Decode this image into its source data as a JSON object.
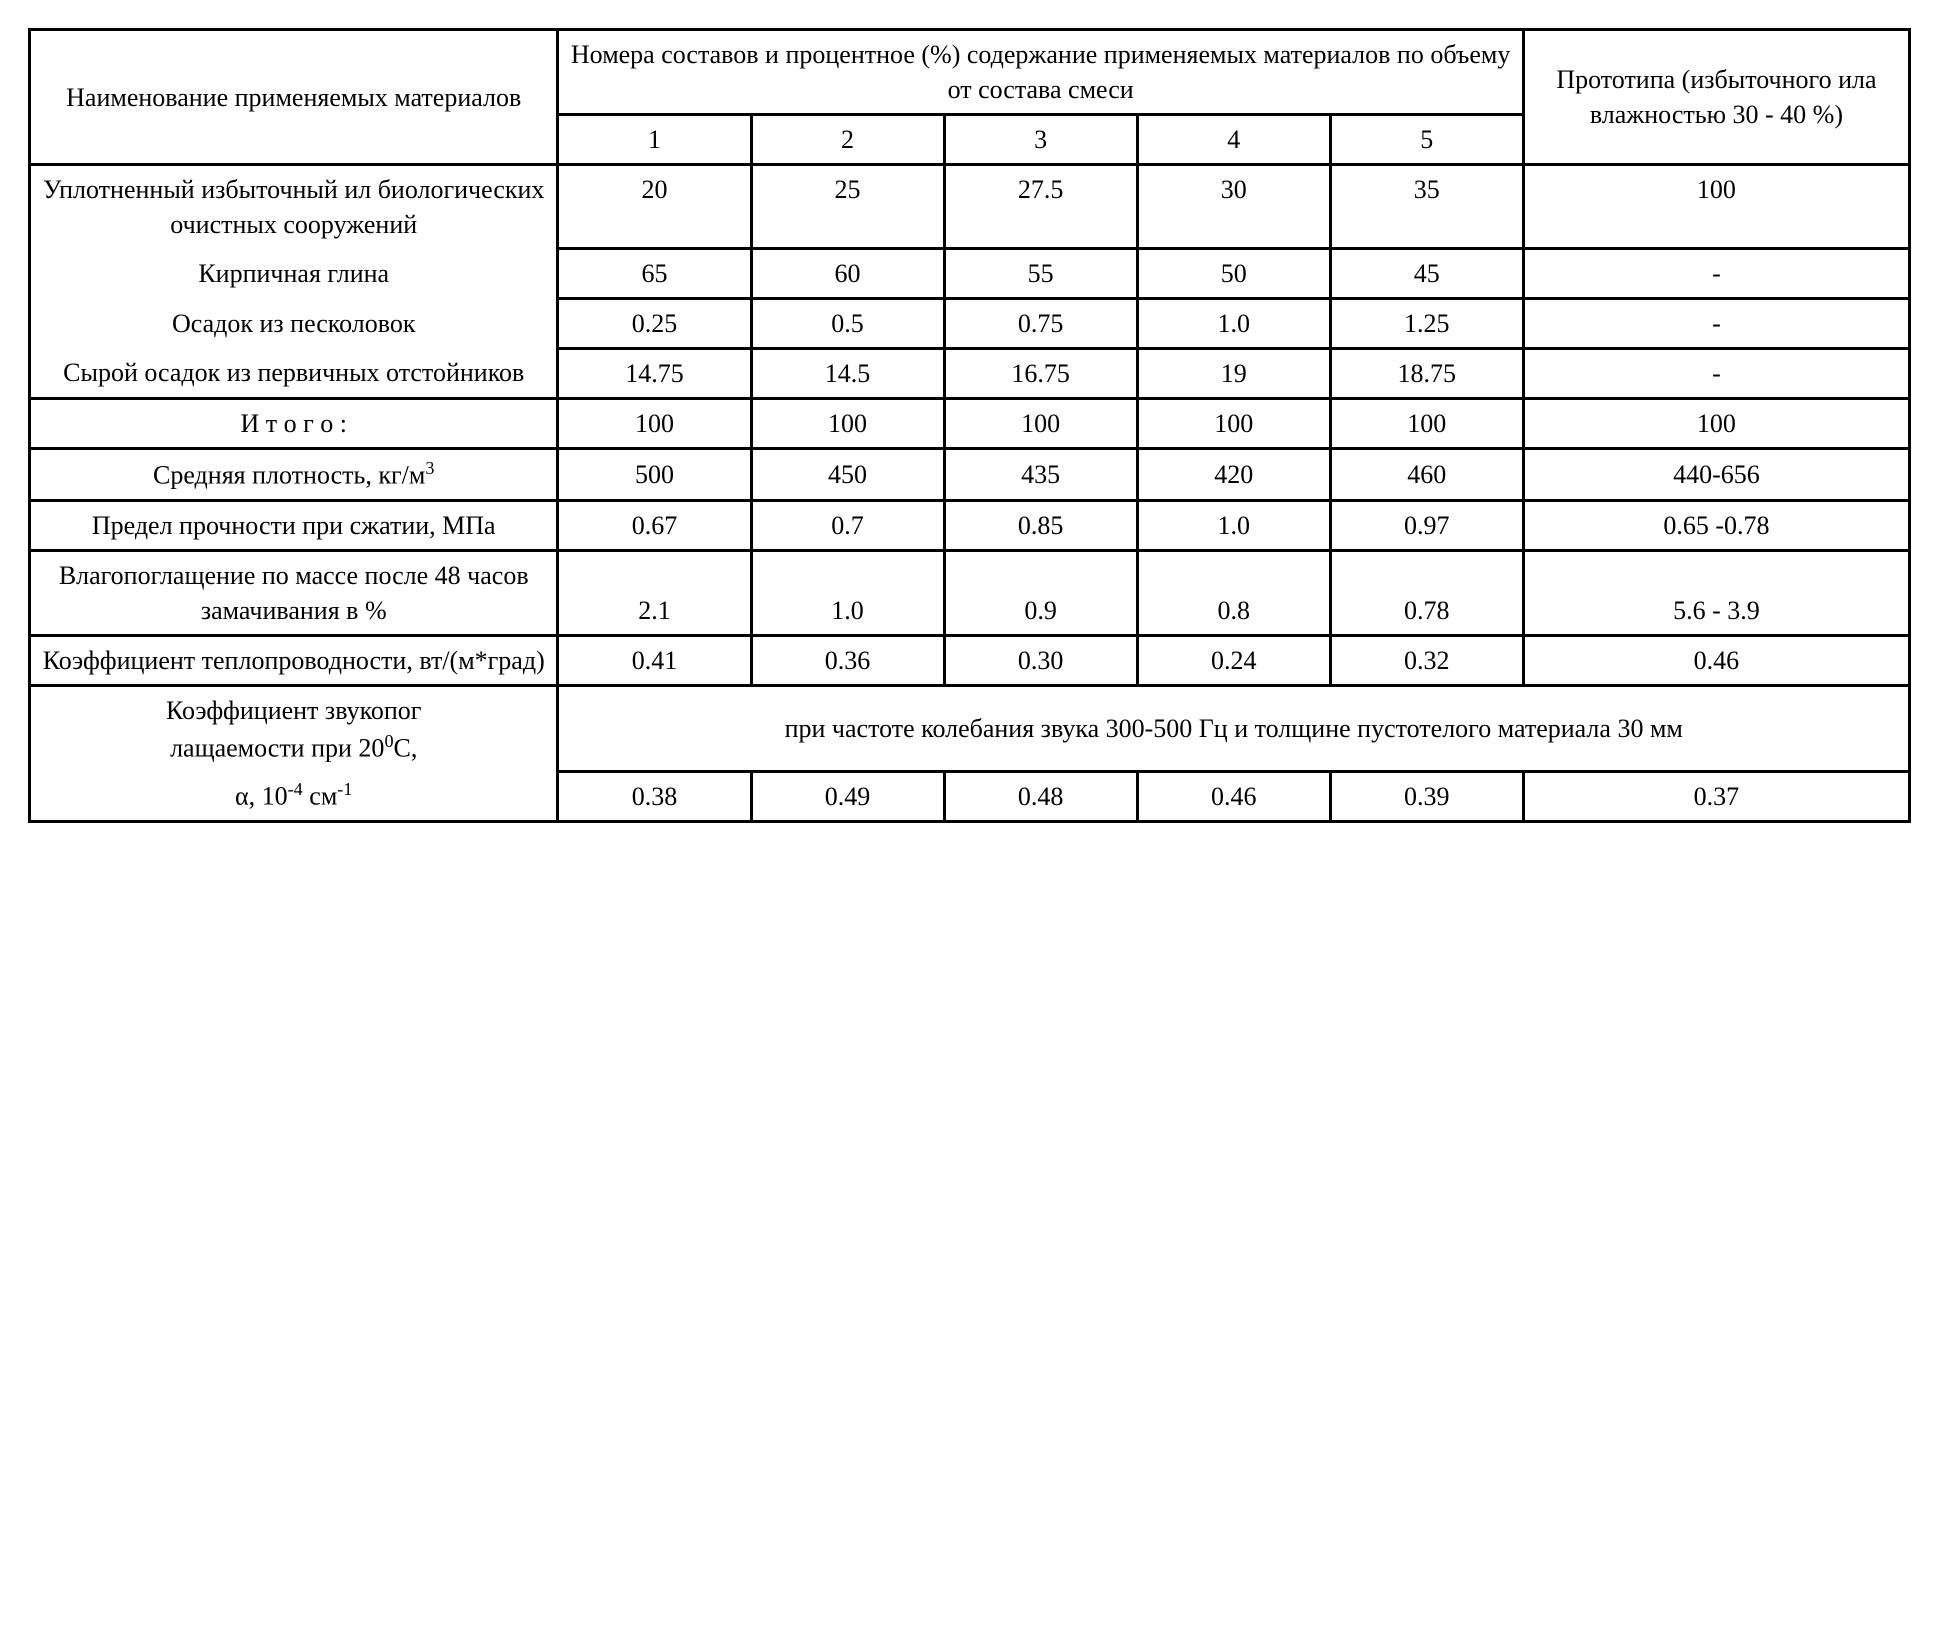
{
  "header": {
    "name_col": "Наименование применяемых материалов",
    "compositions_col": "Номера составов и процентное (%) содержание применяемых материалов по объему от состава смеси",
    "prototype_col": "Прототипа (избыточ­ного ила влажностью 30 - 40 %)",
    "num1": "1",
    "num2": "2",
    "num3": "3",
    "num4": "4",
    "num5": "5"
  },
  "rows": {
    "sludge_bio": {
      "label": "Уплотненный избыточ­ный ил биологических очистных сооружений",
      "c1": "20",
      "c2": "25",
      "c3": "27.5",
      "c4": "30",
      "c5": "35",
      "proto": "100"
    },
    "brick_clay": {
      "label": "Кирпичная глина",
      "c1": "65",
      "c2": "60",
      "c3": "55",
      "c4": "50",
      "c5": "45",
      "proto": "-"
    },
    "sand_trap": {
      "label": "Осадок из песколовок",
      "c1": "0.25",
      "c2": "0.5",
      "c3": "0.75",
      "c4": "1.0",
      "c5": "1.25",
      "proto": "-"
    },
    "primary_sed": {
      "label": "Сырой осадок из первич­ных отстойников",
      "c1": "14.75",
      "c2": "14.5",
      "c3": "16.75",
      "c4": "19",
      "c5": "18.75",
      "proto": "-"
    },
    "total": {
      "label": "И т о г о :",
      "c1": "100",
      "c2": "100",
      "c3": "100",
      "c4": "100",
      "c5": "100",
      "proto": "100"
    },
    "density": {
      "label_prefix": "Средняя плотность, кг/м",
      "label_sup": "3",
      "c1": "500",
      "c2": "450",
      "c3": "435",
      "c4": "420",
      "c5": "460",
      "proto": "440-656"
    },
    "strength": {
      "label": "Предел прочности при сжатии, МПа",
      "c1": "0.67",
      "c2": "0.7",
      "c3": "0.85",
      "c4": "1.0",
      "c5": "0.97",
      "proto": "0.65 -0.78"
    },
    "water_abs": {
      "label": "Влагопоглащение по мас­се после 48 часов замачивания  в %",
      "c1": "2.1",
      "c2": "1.0",
      "c3": "0.9",
      "c4": "0.8",
      "c5": "0.78",
      "proto": "5.6 - 3.9"
    },
    "thermal": {
      "label": "Коэффициент теплопро­водности, вт/(м*град)",
      "c1": "0.41",
      "c2": "0.36",
      "c3": "0.30",
      "c4": "0.24",
      "c5": "0.32",
      "proto": "0.46"
    },
    "acoustic": {
      "label_l1": "Коэффициент звукопог­",
      "label_l2_pre": "лащаемости при 20",
      "label_l2_sup": "0",
      "label_l2_post": "С,",
      "label_l3_pre": "α, 10",
      "label_l3_sup": "-4",
      "label_l3_post": " см",
      "label_l3_sup2": "-1",
      "note": "при частоте колебания звука 300-500 Гц и толщине пустотелого материала 30 мм",
      "c1": "0.38",
      "c2": "0.49",
      "c3": "0.48",
      "c4": "0.46",
      "c5": "0.39",
      "proto": "0.37"
    }
  }
}
